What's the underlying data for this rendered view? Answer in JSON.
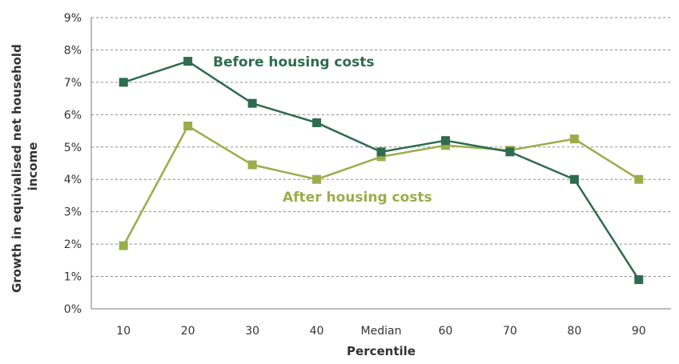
{
  "chart_data": {
    "type": "line",
    "categories": [
      "10",
      "20",
      "30",
      "40",
      "Median",
      "60",
      "70",
      "80",
      "90"
    ],
    "series": [
      {
        "name": "Before housing costs",
        "color": "#2e6b4f",
        "values": [
          7.0,
          7.65,
          6.35,
          5.75,
          4.85,
          5.2,
          4.85,
          4.0,
          0.9
        ]
      },
      {
        "name": "After housing costs",
        "color": "#9aad4a",
        "values": [
          1.95,
          5.65,
          4.45,
          4.0,
          4.7,
          5.05,
          4.9,
          5.25,
          4.0
        ]
      }
    ],
    "xlabel": "Percentile",
    "ylabel": "Growth in equivalised net household income",
    "ylabel_lines": [
      "Growth in equivalised net household",
      "income"
    ],
    "yticks": [
      "0%",
      "1%",
      "2%",
      "3%",
      "4%",
      "5%",
      "6%",
      "7%",
      "8%",
      "9%"
    ],
    "ylim": [
      0,
      9
    ],
    "grid": "horizontal dashed",
    "legend": "inline labels"
  }
}
